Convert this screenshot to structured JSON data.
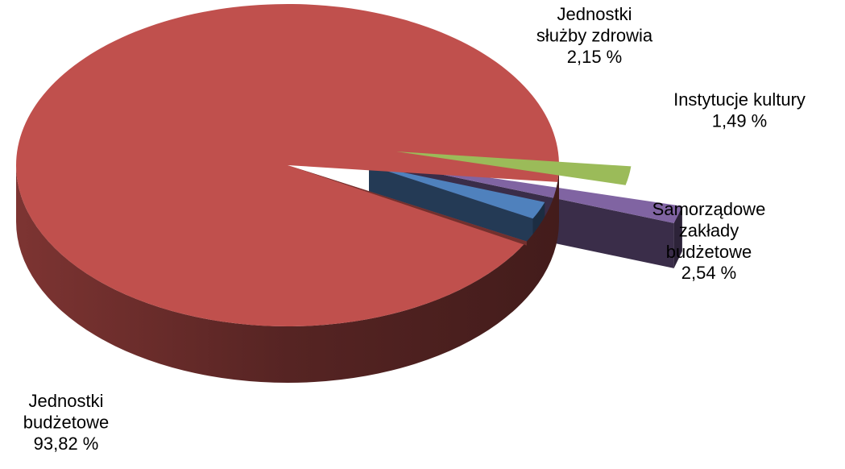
{
  "chart_data": {
    "type": "pie",
    "title": "",
    "slices": [
      {
        "label_lines": [
          "Jednostki",
          "budżetowe"
        ],
        "value": 93.82,
        "value_label": "93,82 %",
        "color": "#C0504D"
      },
      {
        "label_lines": [
          "Samorządowe",
          "zakłady",
          "budżetowe"
        ],
        "value": 2.54,
        "value_label": "2,54 %",
        "color": "#4F81BD"
      },
      {
        "label_lines": [
          "Instytucje kultury"
        ],
        "value": 1.49,
        "value_label": "1,49 %",
        "color": "#8064A2"
      },
      {
        "label_lines": [
          "Jednostki",
          "służby zdrowia"
        ],
        "value": 2.15,
        "value_label": "2,15 %",
        "color": "#9BBB59"
      }
    ],
    "legend": "none",
    "style": "3d-exploded"
  }
}
